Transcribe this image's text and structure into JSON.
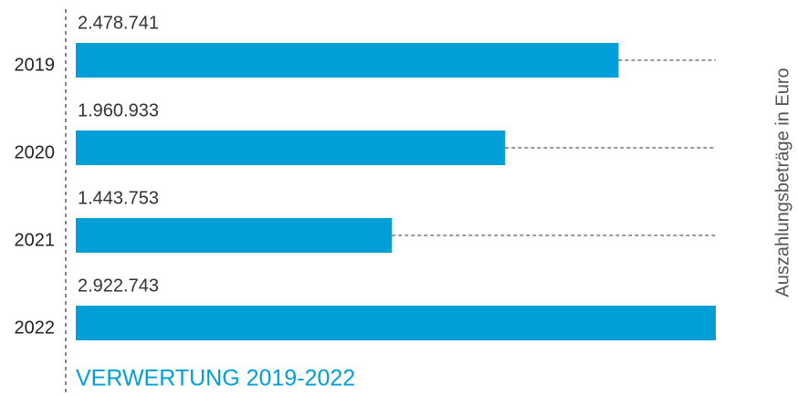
{
  "chart_data": {
    "type": "bar",
    "orientation": "horizontal",
    "title": "VERWERTUNG 2019-2022",
    "x_label": "Auszahlungsbeträge in Euro",
    "categories": [
      "2019",
      "2020",
      "2021",
      "2022"
    ],
    "values": [
      2478741,
      1960933,
      1443753,
      2922743
    ],
    "value_labels": [
      "2.478.741",
      "1.960.933",
      "1.443.753",
      "2.922.743"
    ],
    "color": "#009fd8",
    "xlim": [
      0,
      2922743
    ]
  }
}
